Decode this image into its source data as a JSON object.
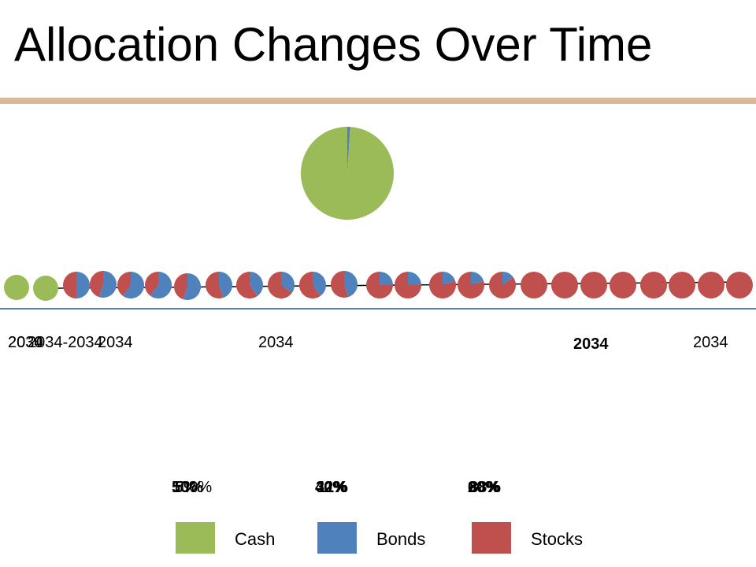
{
  "slide": {
    "title": "Allocation Changes Over Time",
    "rule_color": "#d9b99a"
  },
  "chart_data": {
    "type": "pie",
    "colors": {
      "cash": "#9bbb59",
      "bonds": "#4f81bd",
      "stocks": "#c0504d"
    },
    "pies": [
      {
        "cash": 100,
        "bonds": 0,
        "stocks": 0
      },
      {
        "cash": 100,
        "bonds": 0,
        "stocks": 0
      },
      {
        "cash": 0,
        "bonds": 50,
        "stocks": 50
      },
      {
        "cash": 0,
        "bonds": 55,
        "stocks": 45
      },
      {
        "cash": 0,
        "bonds": 60,
        "stocks": 40
      },
      {
        "cash": 0,
        "bonds": 60,
        "stocks": 40
      },
      {
        "cash": 0,
        "bonds": 55,
        "stocks": 45
      },
      {
        "cash": 0,
        "bonds": 45,
        "stocks": 55
      },
      {
        "cash": 0,
        "bonds": 40,
        "stocks": 60
      },
      {
        "cash": 0,
        "bonds": 35,
        "stocks": 65
      },
      {
        "cash": 0,
        "bonds": 40,
        "stocks": 60
      },
      {
        "cash": 0,
        "bonds": 45,
        "stocks": 55
      },
      {
        "cash": 0,
        "bonds": 25,
        "stocks": 75
      },
      {
        "cash": 0,
        "bonds": 25,
        "stocks": 75
      },
      {
        "cash": 0,
        "bonds": 20,
        "stocks": 80
      },
      {
        "cash": 0,
        "bonds": 20,
        "stocks": 80
      },
      {
        "cash": 0,
        "bonds": 15,
        "stocks": 85
      },
      {
        "cash": 0,
        "bonds": 0,
        "stocks": 100
      },
      {
        "cash": 0,
        "bonds": 0,
        "stocks": 100
      },
      {
        "cash": 0,
        "bonds": 0,
        "stocks": 100
      },
      {
        "cash": 0,
        "bonds": 0,
        "stocks": 100
      },
      {
        "cash": 0,
        "bonds": 0,
        "stocks": 100
      },
      {
        "cash": 0,
        "bonds": 0,
        "stocks": 100
      },
      {
        "cash": 0,
        "bonds": 0,
        "stocks": 100
      },
      {
        "cash": 0,
        "bonds": 0,
        "stocks": 100
      }
    ],
    "featured_pie": {
      "cash": 99,
      "bonds": 1,
      "stocks": 0
    },
    "year_labels": [
      {
        "text": "2034",
        "bold": false
      },
      {
        "text": "2030",
        "bold": false
      },
      {
        "text": "2034-2034",
        "bold": false
      },
      {
        "text": "2034",
        "bold": false
      },
      {
        "text": "2034",
        "bold": false
      },
      {
        "text": "2034",
        "bold": true
      },
      {
        "text": "2034",
        "bold": false
      }
    ],
    "percent_labels": [
      {
        "text": "100%",
        "bold": false
      },
      {
        "text": "50%",
        "bold": true
      },
      {
        "text": "5%",
        "bold": true
      },
      {
        "text": "40%",
        "bold": true
      },
      {
        "text": "32%",
        "bold": true
      },
      {
        "text": "11%",
        "bold": true
      },
      {
        "text": "20%",
        "bold": true
      },
      {
        "text": "60%",
        "bold": true
      },
      {
        "text": "88%",
        "bold": true
      }
    ],
    "legend": [
      "Cash",
      "Bonds",
      "Stocks"
    ]
  }
}
